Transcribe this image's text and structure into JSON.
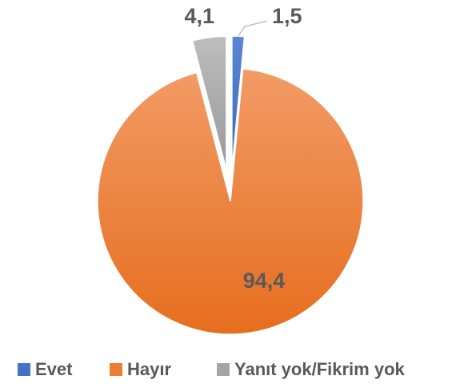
{
  "chart_data": {
    "type": "pie",
    "categories": [
      "Evet",
      "Hayır",
      "Yanıt yok/Fikrim yok"
    ],
    "values": [
      1.5,
      94.4,
      4.1
    ],
    "value_labels": [
      "1,5",
      "94,4",
      "4,1"
    ],
    "colors": [
      "#4472c4",
      "#ed7d31",
      "#a5a5a5"
    ],
    "legend": "bottom"
  }
}
